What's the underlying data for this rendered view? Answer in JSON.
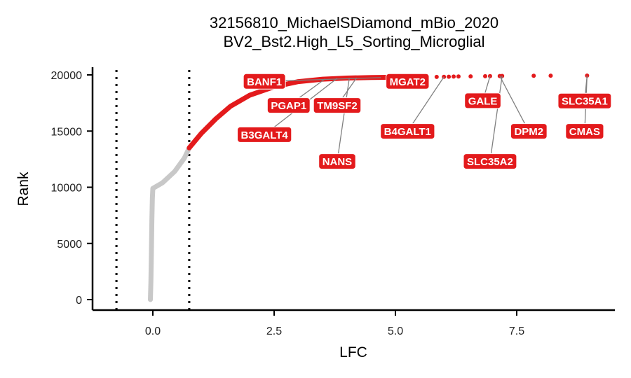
{
  "chart_data": {
    "type": "scatter",
    "title": "32156810_MichaelSDiamond_mBio_2020",
    "subtitle": "BV2_Bst2.High_L5_Sorting_Microglial",
    "xlabel": "LFC",
    "ylabel": "Rank",
    "xlim": [
      -1.2,
      9.5
    ],
    "ylim": [
      -800,
      20600
    ],
    "x_ticks": [
      0.0,
      2.5,
      5.0,
      7.5
    ],
    "x_tick_labels": [
      "0.0",
      "2.5",
      "5.0",
      "7.5"
    ],
    "y_ticks": [
      0,
      5000,
      10000,
      15000,
      20000
    ],
    "y_tick_labels": [
      "0",
      "5000",
      "10000",
      "15000",
      "20000"
    ],
    "thresholds": [
      -0.75,
      0.75
    ],
    "grid": false,
    "legend": "none",
    "colors": {
      "significant": "#e31a1c",
      "background": "#c8c8c8",
      "label_fill": "#e31a1c",
      "label_text": "#ffffff",
      "leader": "#808080"
    },
    "curve": [
      [
        -0.05,
        0
      ],
      [
        -0.04,
        1500
      ],
      [
        -0.03,
        4000
      ],
      [
        -0.02,
        7000
      ],
      [
        -0.01,
        9000
      ],
      [
        0.0,
        9900
      ],
      [
        0.2,
        10400
      ],
      [
        0.45,
        11400
      ],
      [
        0.65,
        12600
      ],
      [
        0.75,
        13500
      ],
      [
        1.0,
        14800
      ],
      [
        1.3,
        16100
      ],
      [
        1.6,
        17200
      ],
      [
        2.0,
        18200
      ],
      [
        2.5,
        18950
      ],
      [
        3.0,
        19400
      ],
      [
        3.5,
        19620
      ],
      [
        4.0,
        19720
      ],
      [
        4.5,
        19770
      ],
      [
        5.0,
        19790
      ]
    ],
    "outliers": [
      {
        "x": 5.85,
        "y": 19820
      },
      {
        "x": 6.0,
        "y": 19830
      },
      {
        "x": 6.1,
        "y": 19840
      },
      {
        "x": 6.2,
        "y": 19850
      },
      {
        "x": 6.3,
        "y": 19860
      },
      {
        "x": 6.55,
        "y": 19870
      },
      {
        "x": 6.85,
        "y": 19880
      },
      {
        "x": 6.95,
        "y": 19890
      },
      {
        "x": 7.15,
        "y": 19900
      },
      {
        "x": 7.2,
        "y": 19910
      },
      {
        "x": 7.85,
        "y": 19920
      },
      {
        "x": 8.2,
        "y": 19930
      },
      {
        "x": 8.95,
        "y": 19940
      }
    ],
    "labels": [
      {
        "gene": "BANF1",
        "x": 4.7,
        "y": 19760,
        "lx": 2.3,
        "ly": 19420
      },
      {
        "gene": "PGAP1",
        "x": 3.55,
        "y": 19640,
        "lx": 2.8,
        "ly": 17280
      },
      {
        "gene": "TM9SF2",
        "x": 4.2,
        "y": 19740,
        "lx": 3.8,
        "ly": 17280
      },
      {
        "gene": "B3GALT4",
        "x": 3.8,
        "y": 19700,
        "lx": 2.3,
        "ly": 14680
      },
      {
        "gene": "NANS",
        "x": 4.05,
        "y": 19730,
        "lx": 3.8,
        "ly": 12300
      },
      {
        "gene": "MGAT2",
        "x": 5.05,
        "y": 19790,
        "lx": 5.25,
        "ly": 19420
      },
      {
        "gene": "B4GALT1",
        "x": 6.0,
        "y": 19830,
        "lx": 5.25,
        "ly": 14980
      },
      {
        "gene": "GALE",
        "x": 6.95,
        "y": 19890,
        "lx": 6.8,
        "ly": 17700
      },
      {
        "gene": "SLC35A2",
        "x": 7.2,
        "y": 19910,
        "lx": 6.95,
        "ly": 12300
      },
      {
        "gene": "DPM2",
        "x": 7.15,
        "y": 19900,
        "lx": 7.75,
        "ly": 14980
      },
      {
        "gene": "SLC35A1",
        "x": 8.95,
        "y": 19940,
        "lx": 8.9,
        "ly": 17680
      },
      {
        "gene": "CMAS",
        "x": 8.95,
        "y": 19940,
        "lx": 8.9,
        "ly": 14980
      }
    ]
  }
}
